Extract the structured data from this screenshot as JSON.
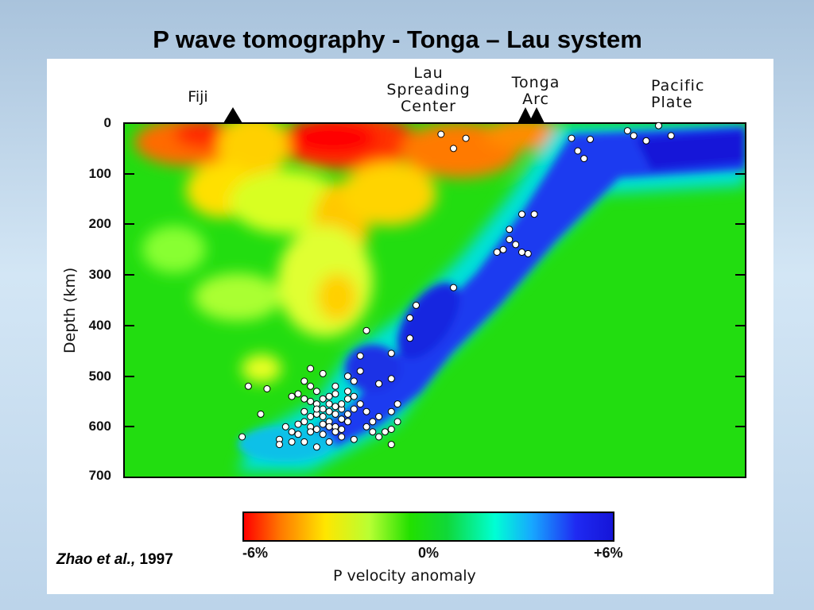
{
  "title": "P wave tomography -  Tonga – Lau system",
  "citation": {
    "authors": "Zhao et al.,",
    "year": " 1997"
  },
  "chart_data": {
    "type": "heatmap",
    "title": "",
    "ylabel": "Depth (km)",
    "xlabel": "",
    "yticks": [
      "0",
      "100",
      "200",
      "300",
      "400",
      "500",
      "600",
      "700"
    ],
    "ylim": [
      0,
      700
    ],
    "y_inverted": true,
    "surface_labels": [
      {
        "text": "Fiji",
        "marker": "triangle"
      },
      {
        "text": "Lau\nSpreading\nCenter",
        "marker": "none"
      },
      {
        "text": "Tonga\nArc",
        "marker": "double-triangle"
      },
      {
        "text": "Pacific\nPlate",
        "marker": "none"
      }
    ],
    "colorbar": {
      "title": "P velocity anomaly",
      "min_label": "-6%",
      "mid_label": "0%",
      "max_label": "+6%",
      "range": [
        -6,
        6
      ],
      "colors": [
        "#ff0000",
        "#ff7a00",
        "#ffe600",
        "#22e000",
        "#00ffd4",
        "#1f2af2",
        "#1515d8"
      ]
    },
    "earthquakes": [
      [
        0.55,
        30
      ],
      [
        0.51,
        22
      ],
      [
        0.53,
        50
      ],
      [
        0.72,
        30
      ],
      [
        0.73,
        55
      ],
      [
        0.74,
        70
      ],
      [
        0.75,
        32
      ],
      [
        0.81,
        15
      ],
      [
        0.82,
        25
      ],
      [
        0.84,
        35
      ],
      [
        0.86,
        5
      ],
      [
        0.88,
        25
      ],
      [
        0.64,
        180
      ],
      [
        0.66,
        180
      ],
      [
        0.62,
        210
      ],
      [
        0.62,
        230
      ],
      [
        0.63,
        240
      ],
      [
        0.61,
        250
      ],
      [
        0.6,
        255
      ],
      [
        0.64,
        255
      ],
      [
        0.65,
        258
      ],
      [
        0.53,
        325
      ],
      [
        0.47,
        360
      ],
      [
        0.46,
        385
      ],
      [
        0.46,
        425
      ],
      [
        0.43,
        455
      ],
      [
        0.39,
        410
      ],
      [
        0.38,
        460
      ],
      [
        0.3,
        485
      ],
      [
        0.32,
        495
      ],
      [
        0.38,
        490
      ],
      [
        0.36,
        500
      ],
      [
        0.37,
        510
      ],
      [
        0.34,
        520
      ],
      [
        0.29,
        510
      ],
      [
        0.3,
        520
      ],
      [
        0.31,
        530
      ],
      [
        0.28,
        535
      ],
      [
        0.27,
        540
      ],
      [
        0.29,
        545
      ],
      [
        0.3,
        550
      ],
      [
        0.31,
        555
      ],
      [
        0.32,
        545
      ],
      [
        0.33,
        555
      ],
      [
        0.34,
        560
      ],
      [
        0.35,
        565
      ],
      [
        0.34,
        575
      ],
      [
        0.33,
        570
      ],
      [
        0.32,
        565
      ],
      [
        0.31,
        575
      ],
      [
        0.3,
        580
      ],
      [
        0.29,
        590
      ],
      [
        0.3,
        600
      ],
      [
        0.31,
        605
      ],
      [
        0.32,
        595
      ],
      [
        0.33,
        590
      ],
      [
        0.34,
        600
      ],
      [
        0.35,
        585
      ],
      [
        0.36,
        575
      ],
      [
        0.35,
        555
      ],
      [
        0.36,
        545
      ],
      [
        0.33,
        540
      ],
      [
        0.34,
        535
      ],
      [
        0.36,
        530
      ],
      [
        0.37,
        540
      ],
      [
        0.38,
        555
      ],
      [
        0.37,
        565
      ],
      [
        0.36,
        590
      ],
      [
        0.35,
        605
      ],
      [
        0.34,
        610
      ],
      [
        0.32,
        615
      ],
      [
        0.3,
        610
      ],
      [
        0.28,
        615
      ],
      [
        0.27,
        610
      ],
      [
        0.26,
        600
      ],
      [
        0.28,
        595
      ],
      [
        0.29,
        570
      ],
      [
        0.31,
        565
      ],
      [
        0.32,
        580
      ],
      [
        0.33,
        600
      ],
      [
        0.35,
        620
      ],
      [
        0.33,
        630
      ],
      [
        0.31,
        640
      ],
      [
        0.29,
        630
      ],
      [
        0.27,
        630
      ],
      [
        0.25,
        625
      ],
      [
        0.39,
        600
      ],
      [
        0.4,
        610
      ],
      [
        0.41,
        620
      ],
      [
        0.42,
        610
      ],
      [
        0.43,
        605
      ],
      [
        0.4,
        590
      ],
      [
        0.41,
        580
      ],
      [
        0.43,
        570
      ],
      [
        0.44,
        590
      ],
      [
        0.43,
        635
      ],
      [
        0.37,
        625
      ],
      [
        0.39,
        570
      ],
      [
        0.2,
        520
      ],
      [
        0.23,
        525
      ],
      [
        0.22,
        575
      ],
      [
        0.19,
        620
      ],
      [
        0.25,
        635
      ],
      [
        0.44,
        555
      ],
      [
        0.41,
        515
      ],
      [
        0.43,
        505
      ]
    ]
  }
}
